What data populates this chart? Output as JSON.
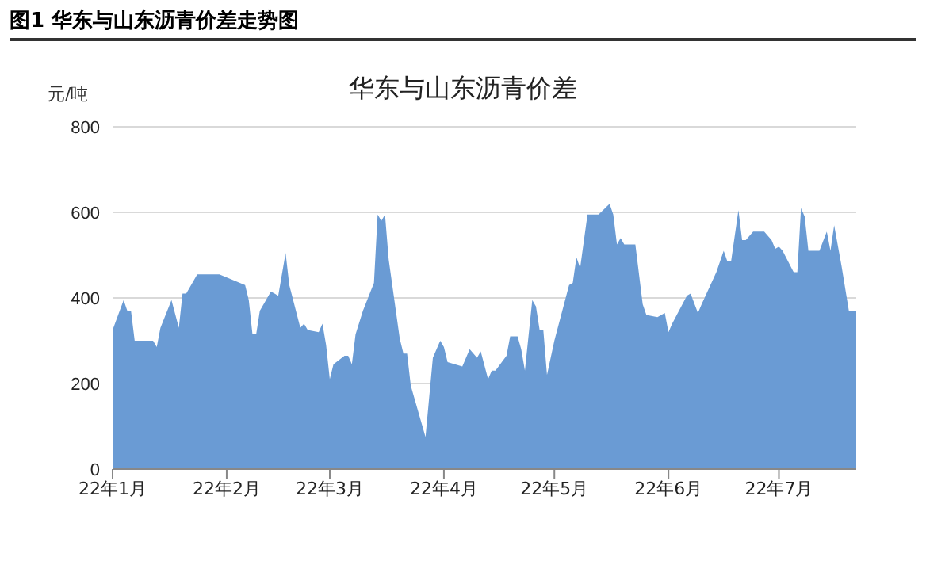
{
  "chart_data": {
    "type": "area",
    "title": "图1 华东与山东沥青价差走势图",
    "subtitle": "华东与山东沥青价差",
    "ylabel": "元/吨",
    "x": [
      "--01-01",
      "--01-04",
      "--01-05",
      "--01-06",
      "--01-07",
      "--01-12",
      "--01-13",
      "--01-14",
      "--01-17",
      "--01-19",
      "--01-20",
      "--01-21",
      "--01-24",
      "--01-30",
      "--02-06",
      "--02-07",
      "--02-08",
      "--02-09",
      "--02-10",
      "--02-13",
      "--02-14",
      "--02-15",
      "--02-17",
      "--02-18",
      "--02-21",
      "--02-22",
      "--02-23",
      "--02-26",
      "--02-27",
      "--02-28",
      "--03-01",
      "--03-02",
      "--03-05",
      "--03-06",
      "--03-07",
      "--03-08",
      "--03-10",
      "--03-13",
      "--03-14",
      "--03-15",
      "--03-16",
      "--03-17",
      "--03-20",
      "--03-21",
      "--03-22",
      "--03-23",
      "--03-27",
      "--03-29",
      "--03-31",
      "--04-01",
      "--04-02",
      "--04-06",
      "--04-08",
      "--04-10",
      "--04-11",
      "--04-13",
      "--04-14",
      "--04-15",
      "--04-18",
      "--04-19",
      "--04-21",
      "--04-22",
      "--04-23",
      "--04-25",
      "--04-26",
      "--04-27",
      "--04-28",
      "--04-29",
      "--05-01",
      "--05-05",
      "--05-06",
      "--05-07",
      "--05-08",
      "--05-10",
      "--05-13",
      "--05-16",
      "--05-17",
      "--05-18",
      "--05-19",
      "--05-20",
      "--05-23",
      "--05-25",
      "--05-26",
      "--05-29",
      "--05-31",
      "--06-01",
      "--06-02",
      "--06-06",
      "--06-07",
      "--06-09",
      "--06-10",
      "--06-14",
      "--06-16",
      "--06-17",
      "--06-18",
      "--06-20",
      "--06-21",
      "--06-22",
      "--06-24",
      "--06-27",
      "--06-29",
      "--06-30",
      "--07-01",
      "--07-02",
      "--07-05",
      "--07-06",
      "--07-07",
      "--07-08",
      "--07-09",
      "--07-12",
      "--07-14",
      "--07-15",
      "--07-16",
      "--07-18",
      "--07-20",
      "--07-22"
    ],
    "values": [
      325,
      395,
      370,
      370,
      300,
      300,
      285,
      330,
      395,
      330,
      410,
      410,
      455,
      455,
      430,
      395,
      315,
      315,
      370,
      415,
      410,
      405,
      505,
      430,
      330,
      340,
      325,
      320,
      340,
      290,
      210,
      245,
      265,
      265,
      245,
      315,
      370,
      435,
      595,
      580,
      595,
      490,
      305,
      270,
      270,
      195,
      75,
      260,
      300,
      285,
      250,
      240,
      280,
      260,
      275,
      210,
      230,
      230,
      265,
      310,
      310,
      280,
      230,
      395,
      380,
      325,
      325,
      220,
      300,
      430,
      435,
      495,
      470,
      595,
      595,
      620,
      595,
      525,
      540,
      525,
      525,
      385,
      360,
      355,
      365,
      320,
      340,
      405,
      410,
      365,
      385,
      460,
      510,
      485,
      485,
      605,
      535,
      535,
      555,
      555,
      535,
      515,
      520,
      510,
      460,
      460,
      610,
      590,
      510,
      510,
      555,
      510,
      570,
      475,
      370,
      370
    ],
    "color": "#6a9bd4",
    "xlim": [
      "--01-01",
      "--07-22"
    ],
    "xticks": [
      {
        "value": "--01-01",
        "label": "22年1月"
      },
      {
        "value": "--02-01",
        "label": "22年2月"
      },
      {
        "value": "--03-01",
        "label": "22年3月"
      },
      {
        "value": "--04-01",
        "label": "22年4月"
      },
      {
        "value": "--05-01",
        "label": "22年5月"
      },
      {
        "value": "--06-01",
        "label": "22年6月"
      },
      {
        "value": "--07-01",
        "label": "22年7月"
      }
    ],
    "ylim": [
      0,
      800
    ],
    "yticks": [
      0,
      200,
      400,
      600,
      800
    ],
    "grid": "y"
  }
}
